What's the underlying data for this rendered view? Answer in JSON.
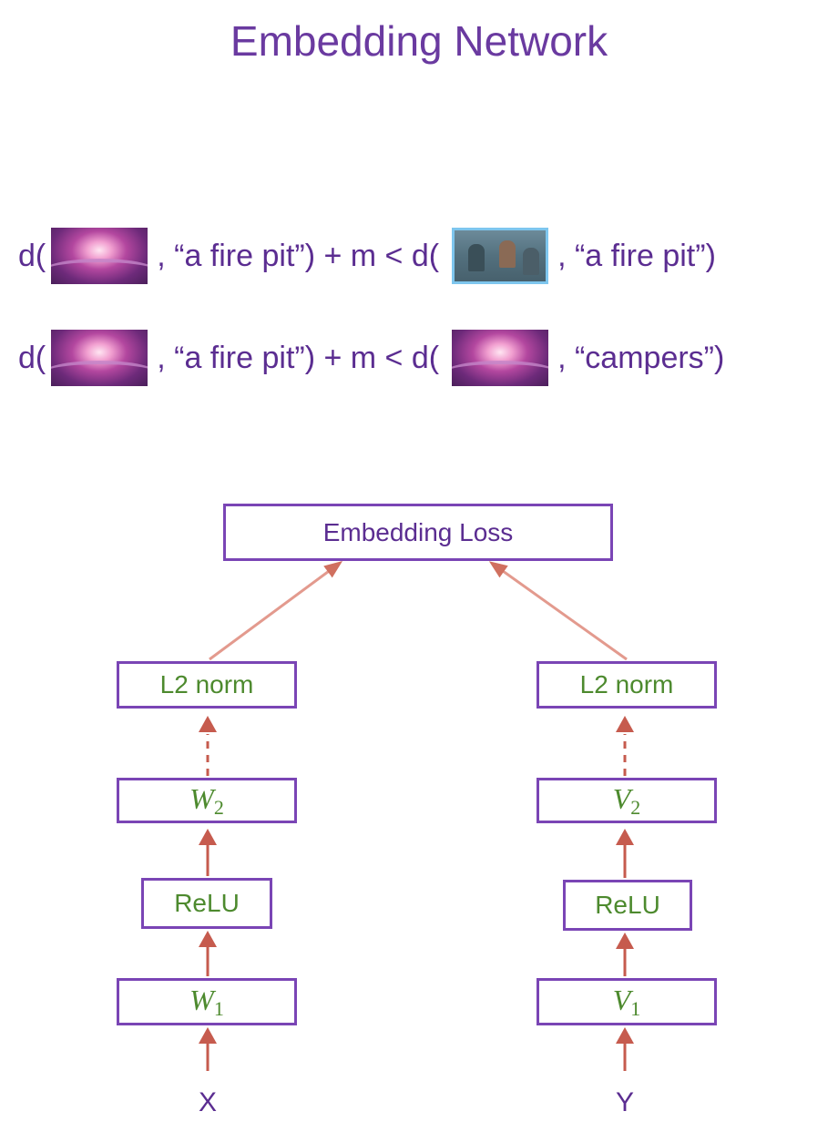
{
  "title": "Embedding Network",
  "equations": [
    {
      "d1": "d(",
      "thumb1": "fire-pit-image",
      "text1": ", “a fire pit”) + m < d(",
      "thumb2": "campers-image",
      "text2": ", “a fire pit”)"
    },
    {
      "d1": "d(",
      "thumb1": "fire-pit-image",
      "text1": ", “a fire pit”) + m < d(",
      "thumb2": "fire-pit-image",
      "text2": ", “campers”)"
    }
  ],
  "diagram": {
    "loss": "Embedding Loss",
    "left": {
      "norm": "L2 norm",
      "w2": "W",
      "w2_sub": "2",
      "relu": "ReLU",
      "w1": "W",
      "w1_sub": "1",
      "input": "X"
    },
    "right": {
      "norm": "L2 norm",
      "w2": "V",
      "w2_sub": "2",
      "relu": "ReLU",
      "w1": "V",
      "w1_sub": "1",
      "input": "Y"
    }
  },
  "colors": {
    "title": "#6a3aa0",
    "box_border": "#7a45b5",
    "box_text": "#4d8a2e",
    "arrow": "#c65b4e",
    "loss_arrow": "#e39a8e"
  }
}
